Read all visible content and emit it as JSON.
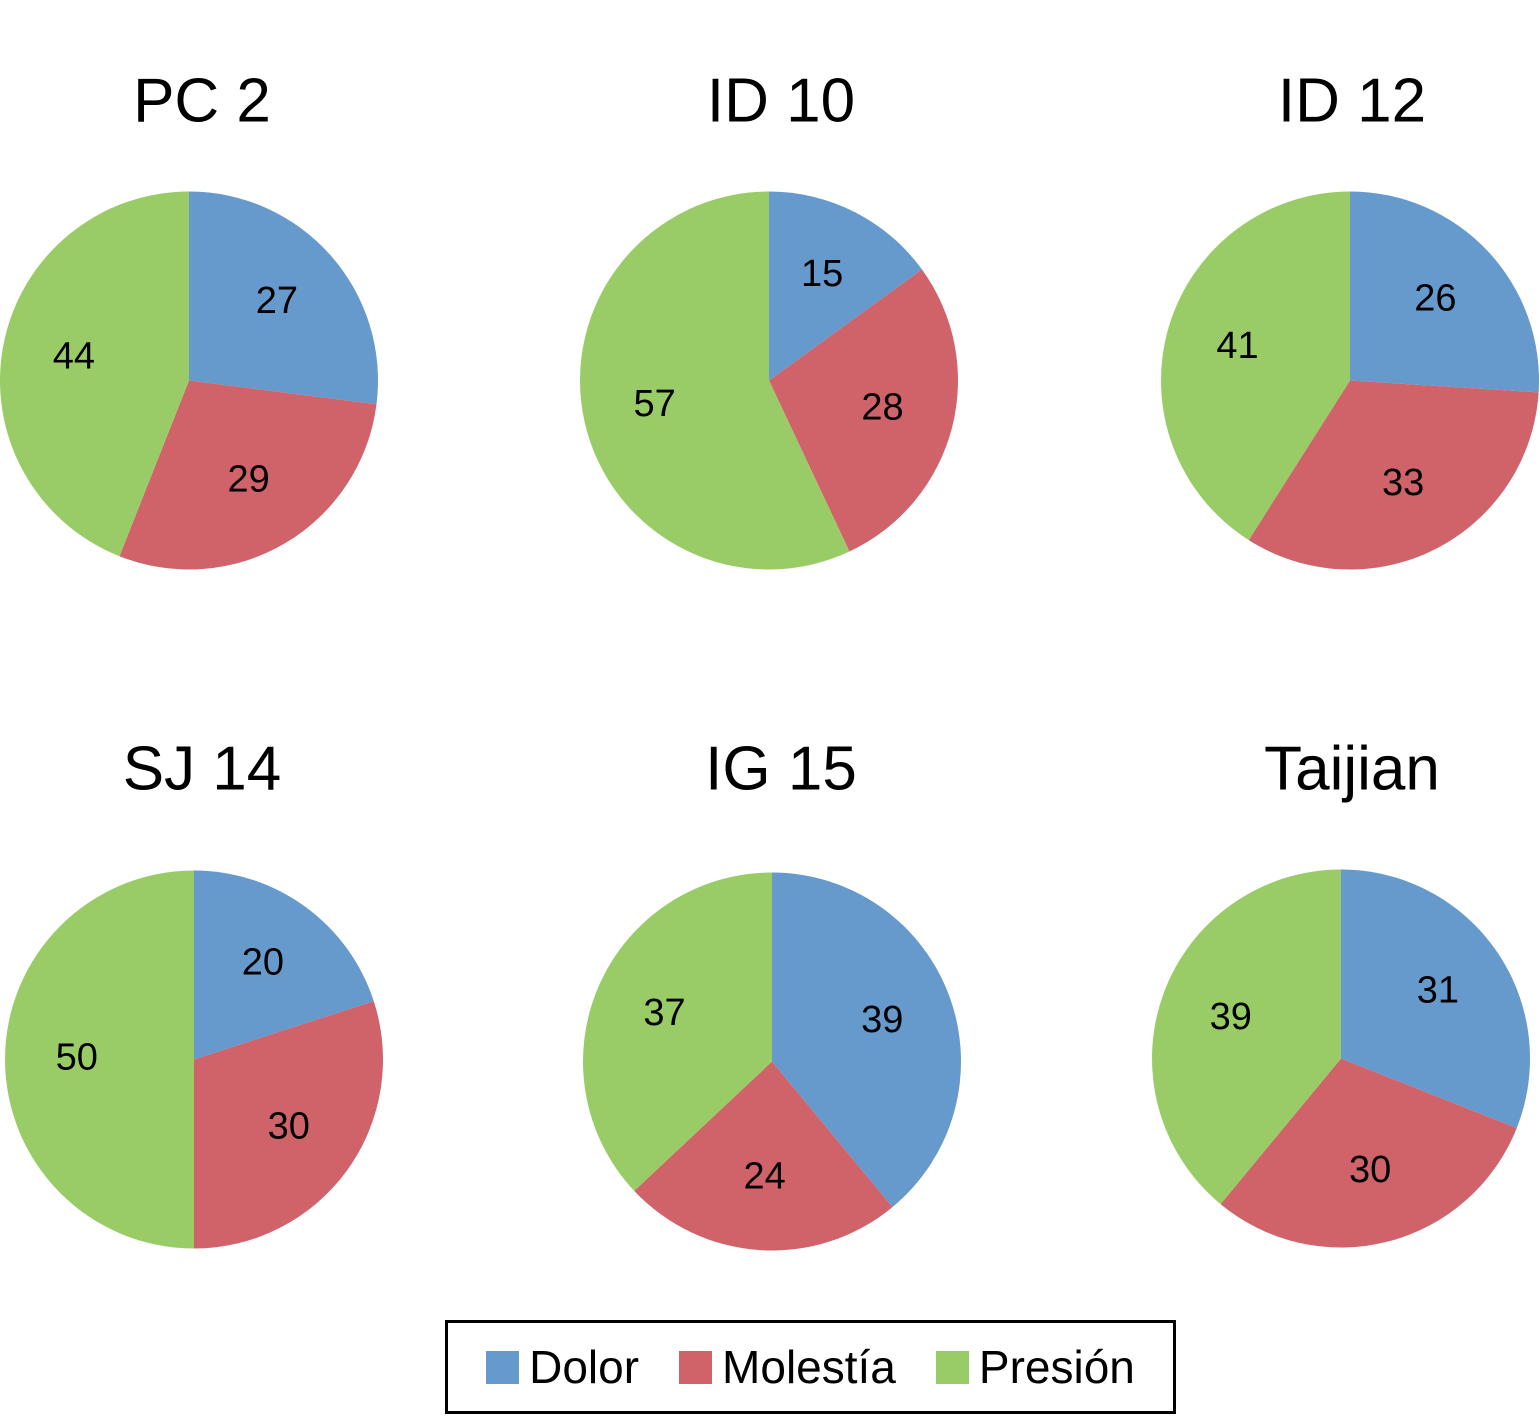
{
  "chart_data": [
    {
      "type": "pie",
      "title": "PC 2",
      "categories": [
        "Dolor",
        "Molestía",
        "Presión"
      ],
      "values": [
        27,
        29,
        44
      ]
    },
    {
      "type": "pie",
      "title": "ID 10",
      "categories": [
        "Dolor",
        "Molestía",
        "Presión"
      ],
      "values": [
        15,
        28,
        57
      ]
    },
    {
      "type": "pie",
      "title": "ID 12",
      "categories": [
        "Dolor",
        "Molestía",
        "Presión"
      ],
      "values": [
        26,
        33,
        41
      ]
    },
    {
      "type": "pie",
      "title": "SJ 14",
      "categories": [
        "Dolor",
        "Molestía",
        "Presión"
      ],
      "values": [
        20,
        30,
        50
      ]
    },
    {
      "type": "pie",
      "title": "IG 15",
      "categories": [
        "Dolor",
        "Molestía",
        "Presión"
      ],
      "values": [
        39,
        24,
        37
      ]
    },
    {
      "type": "pie",
      "title": "Taijian",
      "categories": [
        "Dolor",
        "Molestía",
        "Presión"
      ],
      "values": [
        31,
        30,
        39
      ]
    }
  ],
  "legend": {
    "position": "bottom",
    "items": [
      {
        "label": "Dolor",
        "color": "#6699cc"
      },
      {
        "label": "Molestía",
        "color": "#d0636a"
      },
      {
        "label": "Presión",
        "color": "#99cc66"
      }
    ]
  }
}
